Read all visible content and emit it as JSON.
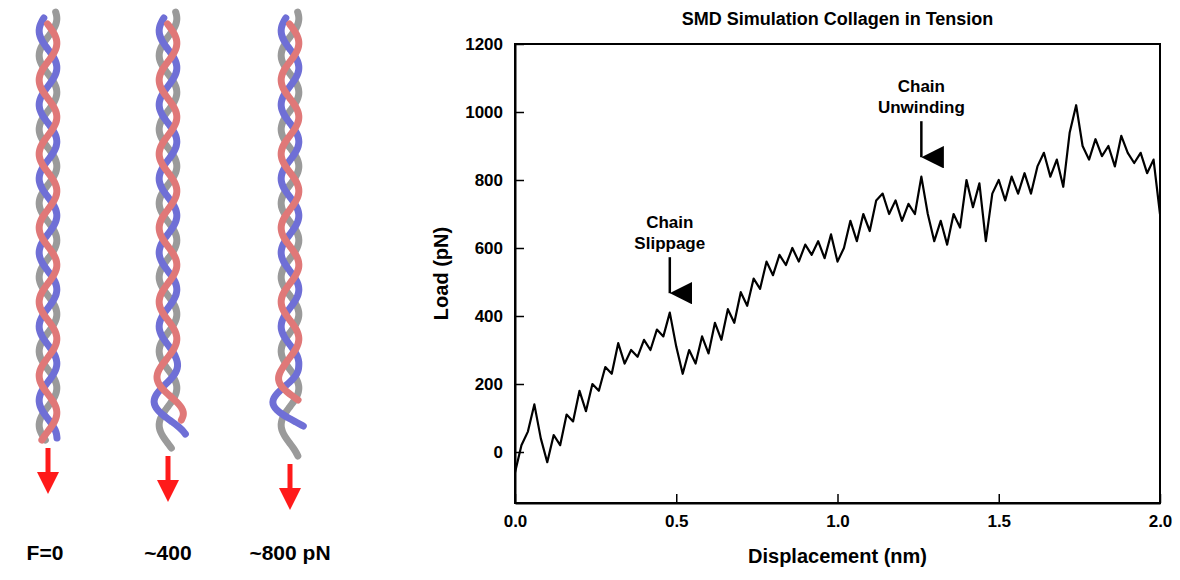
{
  "chart_data": {
    "type": "line",
    "title": "SMD Simulation Collagen in Tension",
    "x_label": "Displacement (nm)",
    "y_label": "Load (pN)",
    "color": "#000000",
    "xlim": [
      0,
      2.0
    ],
    "ylim": [
      -150,
      1200
    ],
    "xticks": [
      {
        "value": 0,
        "label": "0.0"
      },
      0.5,
      {
        "value": 1,
        "label": "1.0"
      },
      1.5,
      {
        "value": 2,
        "label": "2.0"
      }
    ],
    "yticks": [
      0,
      200,
      400,
      600,
      800,
      1000,
      1200
    ],
    "x": [
      0,
      0.02,
      0.04,
      0.06,
      0.08,
      0.1,
      0.12,
      0.14,
      0.16,
      0.18,
      0.2,
      0.22,
      0.24,
      0.26,
      0.28,
      0.3,
      0.32,
      0.34,
      0.36,
      0.38,
      0.4,
      0.42,
      0.44,
      0.46,
      0.48,
      0.5,
      0.52,
      0.54,
      0.56,
      0.58,
      0.6,
      0.62,
      0.64,
      0.66,
      0.68,
      0.7,
      0.72,
      0.74,
      0.76,
      0.78,
      0.8,
      0.82,
      0.84,
      0.86,
      0.88,
      0.9,
      0.92,
      0.94,
      0.96,
      0.98,
      1.0,
      1.02,
      1.04,
      1.06,
      1.08,
      1.1,
      1.12,
      1.14,
      1.16,
      1.18,
      1.2,
      1.22,
      1.24,
      1.26,
      1.28,
      1.3,
      1.32,
      1.34,
      1.36,
      1.38,
      1.4,
      1.42,
      1.44,
      1.46,
      1.48,
      1.5,
      1.52,
      1.54,
      1.56,
      1.58,
      1.6,
      1.62,
      1.64,
      1.66,
      1.68,
      1.7,
      1.72,
      1.74,
      1.76,
      1.78,
      1.8,
      1.82,
      1.84,
      1.86,
      1.88,
      1.9,
      1.92,
      1.94,
      1.96,
      1.98,
      2.0
    ],
    "values": [
      -60,
      20,
      60,
      140,
      40,
      -30,
      50,
      20,
      110,
      90,
      180,
      120,
      200,
      180,
      250,
      230,
      320,
      260,
      300,
      280,
      330,
      300,
      360,
      340,
      410,
      310,
      230,
      300,
      260,
      340,
      290,
      380,
      330,
      420,
      380,
      470,
      430,
      510,
      480,
      560,
      520,
      580,
      550,
      600,
      560,
      610,
      580,
      620,
      570,
      640,
      560,
      600,
      680,
      620,
      700,
      650,
      740,
      760,
      700,
      740,
      680,
      730,
      700,
      810,
      700,
      620,
      680,
      610,
      700,
      660,
      800,
      720,
      790,
      620,
      760,
      800,
      740,
      810,
      760,
      820,
      760,
      840,
      880,
      810,
      860,
      780,
      940,
      1020,
      900,
      860,
      920,
      870,
      900,
      840,
      930,
      880,
      850,
      880,
      820,
      860,
      700
    ],
    "annotations": [
      {
        "lines": [
          "Chain",
          "Slippage"
        ],
        "x": 0.48,
        "y": 420
      },
      {
        "lines": [
          "Chain",
          "Unwinding"
        ],
        "x": 1.26,
        "y": 820
      }
    ]
  },
  "illustration": {
    "labels": [
      "F=0",
      "~400",
      "~800 pN"
    ]
  }
}
